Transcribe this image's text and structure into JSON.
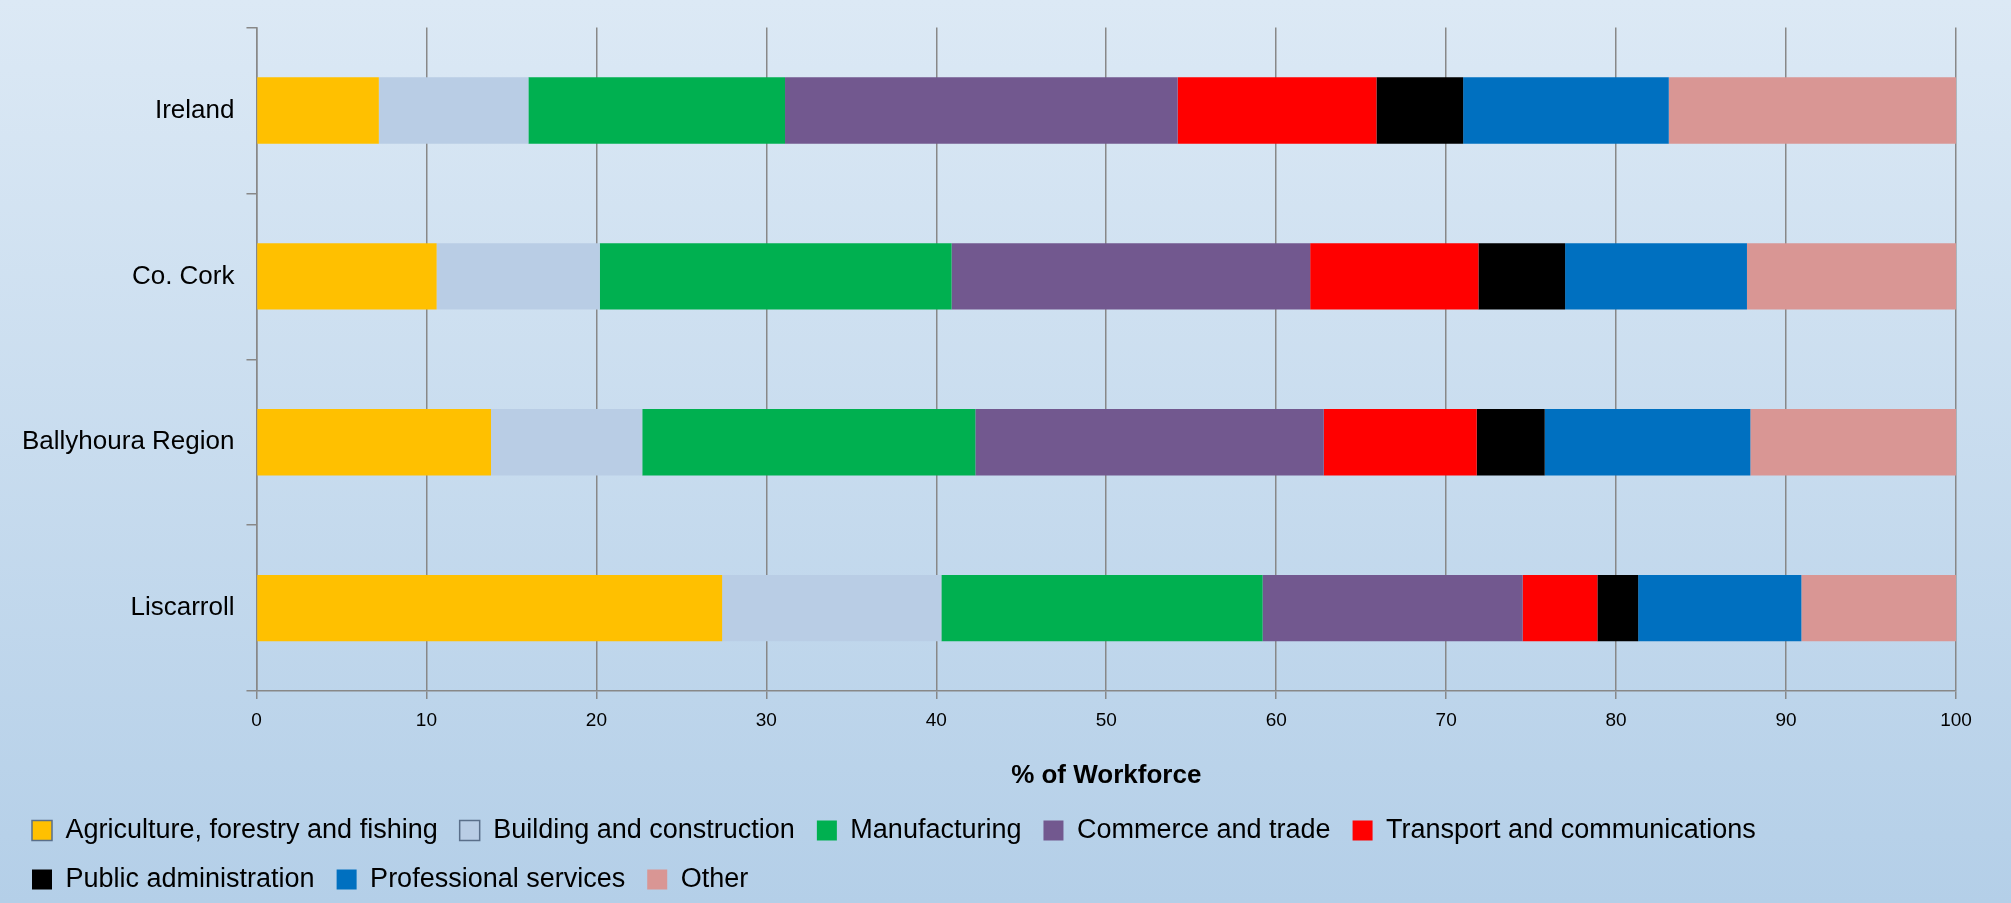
{
  "chart_data": {
    "type": "bar",
    "orientation": "horizontal",
    "stacked": true,
    "xlabel": "% of Workforce",
    "categories": [
      "Ireland",
      "Co. Cork",
      "Ballyhoura Region",
      "Liscarroll"
    ],
    "series": [
      {
        "name": "Agriculture, forestry and fishing",
        "color": "#ffc000",
        "values": [
          7.2,
          10.6,
          13.8,
          27.4
        ]
      },
      {
        "name": "Building and construction",
        "color": "#b9cde5",
        "values": [
          8.8,
          9.6,
          8.9,
          12.9
        ]
      },
      {
        "name": "Manufacturing",
        "color": "#00b050",
        "values": [
          15.1,
          20.7,
          19.6,
          18.9
        ]
      },
      {
        "name": "Commerce and trade",
        "color": "#72588f",
        "values": [
          23.1,
          21.1,
          20.5,
          15.3
        ]
      },
      {
        "name": "Transport and communications",
        "color": "#ff0000",
        "values": [
          11.7,
          9.9,
          9.0,
          4.4
        ]
      },
      {
        "name": "Public administration",
        "color": "#000000",
        "values": [
          5.1,
          5.1,
          4.0,
          2.4
        ]
      },
      {
        "name": "Professional services",
        "color": "#0070c0",
        "values": [
          12.1,
          10.7,
          12.1,
          9.6
        ]
      },
      {
        "name": "Other",
        "color": "#d99694",
        "values": [
          16.9,
          12.3,
          12.1,
          9.1
        ]
      }
    ],
    "xlim": [
      0,
      100
    ],
    "xticks": [
      0,
      10,
      20,
      30,
      40,
      50,
      60,
      70,
      80,
      90,
      100
    ],
    "grid": "x",
    "legend": "bottom"
  }
}
